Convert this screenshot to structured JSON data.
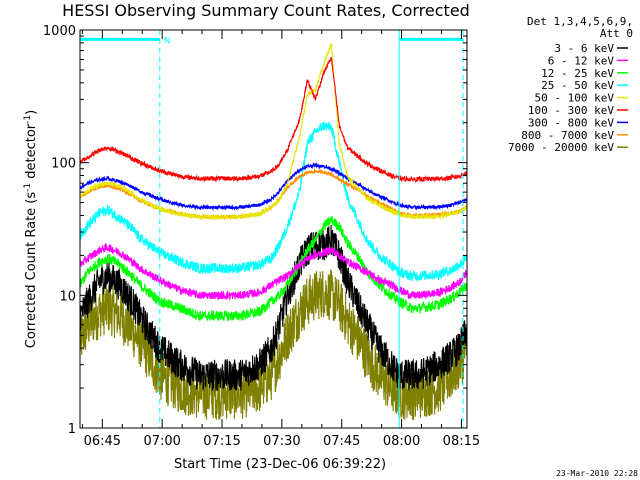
{
  "chart_data": {
    "type": "line",
    "title": "HESSI Observing Summary Count Rates, Corrected",
    "xlabel": "Start Time (23-Dec-06 06:39:22)",
    "ylabel_pre": "Corrected Count Rate (s",
    "ylabel_sup1": "-1",
    "ylabel_mid": " detector",
    "ylabel_sup2": "-1",
    "ylabel_post": ")",
    "y_scale": "log",
    "ylim": [
      1,
      1000
    ],
    "xlim_minutes": [
      0,
      97
    ],
    "y_ticks": [
      {
        "value": 1,
        "label": "1"
      },
      {
        "value": 10,
        "label": "10"
      },
      {
        "value": 100,
        "label": "100"
      },
      {
        "value": 1000,
        "label": "1000"
      }
    ],
    "x_ticks": [
      {
        "minute": 5.6,
        "label": "06:45"
      },
      {
        "minute": 20.6,
        "label": "07:00"
      },
      {
        "minute": 35.6,
        "label": "07:15"
      },
      {
        "minute": 50.6,
        "label": "07:30"
      },
      {
        "minute": 65.6,
        "label": "07:45"
      },
      {
        "minute": 80.6,
        "label": "08:00"
      },
      {
        "minute": 95.6,
        "label": "08:15"
      }
    ],
    "legend": {
      "header1": "Det 1,3,4,5,6,9,",
      "header2": "Att 0",
      "placement": "right"
    },
    "series": [
      {
        "name": "3 - 6 keV",
        "color": "#000000",
        "noise": 0.28,
        "x": [
          0,
          2,
          5,
          7,
          10,
          13,
          15,
          20,
          25,
          30,
          40,
          45,
          48,
          50,
          52,
          55,
          57,
          59,
          61,
          63,
          65,
          67,
          70,
          72,
          75,
          78,
          80,
          83,
          85,
          90,
          93,
          95,
          97
        ],
        "values": [
          7,
          9,
          13,
          14,
          12,
          9,
          7,
          4,
          3,
          2.5,
          2.5,
          3,
          4,
          6,
          10,
          17,
          22,
          24,
          24,
          26,
          20,
          13,
          8,
          6,
          4,
          3,
          2.5,
          2.5,
          2.5,
          3,
          3.5,
          4,
          5.5
        ]
      },
      {
        "name": "6 - 12 keV",
        "color": "#ff00ff",
        "noise": 0.07,
        "x": [
          0,
          2,
          5,
          7,
          10,
          13,
          15,
          20,
          25,
          30,
          40,
          45,
          48,
          50,
          52,
          55,
          57,
          59,
          61,
          63,
          65,
          67,
          70,
          72,
          75,
          78,
          80,
          83,
          85,
          90,
          93,
          95,
          97
        ],
        "values": [
          17,
          19,
          22,
          23,
          21,
          18,
          16,
          13,
          11,
          10,
          10,
          10.5,
          12,
          13,
          14,
          17,
          19,
          20,
          21,
          22,
          20,
          18,
          16,
          15,
          13,
          12,
          11,
          10,
          10,
          10.5,
          11.5,
          12.5,
          15
        ]
      },
      {
        "name": "12 - 25 keV",
        "color": "#00ff00",
        "noise": 0.09,
        "x": [
          0,
          2,
          5,
          7,
          10,
          13,
          15,
          20,
          25,
          30,
          40,
          45,
          48,
          50,
          52,
          55,
          57,
          59,
          61,
          63,
          65,
          67,
          70,
          72,
          75,
          78,
          80,
          83,
          85,
          90,
          93,
          95,
          97
        ],
        "values": [
          12,
          15,
          18,
          19,
          17,
          14,
          12,
          9,
          8,
          7,
          7,
          7.5,
          9,
          10,
          12,
          17,
          22,
          26,
          33,
          37,
          33,
          25,
          19,
          15,
          12,
          10,
          9,
          8,
          8,
          8.5,
          9.5,
          10.5,
          12
        ]
      },
      {
        "name": "25 - 50 keV",
        "color": "#00ffff",
        "noise": 0.09,
        "x": [
          0,
          2,
          5,
          7,
          10,
          13,
          15,
          20,
          25,
          30,
          40,
          45,
          48,
          50,
          52,
          55,
          57,
          59,
          61,
          63,
          65,
          67,
          70,
          72,
          75,
          78,
          80,
          83,
          85,
          90,
          93,
          95,
          97
        ],
        "values": [
          28,
          34,
          42,
          44,
          38,
          32,
          27,
          21,
          18,
          16,
          16,
          17,
          19,
          24,
          33,
          60,
          140,
          170,
          190,
          185,
          100,
          55,
          35,
          26,
          20,
          17,
          15,
          14,
          14,
          14.5,
          15.5,
          17,
          19
        ]
      },
      {
        "name": "50 - 100 keV",
        "color": "#e6e600",
        "noise": 0.04,
        "x": [
          0,
          2,
          5,
          7,
          10,
          13,
          15,
          20,
          25,
          30,
          40,
          45,
          48,
          50,
          52,
          55,
          57,
          59,
          61,
          63,
          65,
          67,
          70,
          72,
          75,
          78,
          80,
          83,
          85,
          90,
          93,
          95,
          97
        ],
        "values": [
          55,
          62,
          68,
          70,
          66,
          59,
          53,
          45,
          41,
          39,
          39,
          41,
          46,
          53,
          70,
          155,
          330,
          350,
          550,
          780,
          140,
          80,
          62,
          54,
          48,
          43,
          41,
          39,
          39,
          39.5,
          41,
          43,
          46
        ]
      },
      {
        "name": "100 - 300 keV",
        "color": "#ff0000",
        "noise": 0.04,
        "x": [
          0,
          2,
          5,
          7,
          10,
          13,
          15,
          20,
          25,
          30,
          40,
          45,
          48,
          50,
          52,
          55,
          57,
          59,
          61,
          63,
          65,
          67,
          70,
          72,
          75,
          78,
          80,
          83,
          85,
          90,
          93,
          95,
          97
        ],
        "values": [
          100,
          110,
          125,
          130,
          120,
          108,
          100,
          87,
          79,
          76,
          76,
          79,
          86,
          97,
          125,
          210,
          420,
          300,
          470,
          620,
          190,
          130,
          110,
          98,
          88,
          80,
          76,
          75,
          75,
          75.5,
          77,
          79,
          84
        ]
      },
      {
        "name": "300 - 800 keV",
        "color": "#0000ff",
        "noise": 0.03,
        "x": [
          0,
          2,
          5,
          7,
          10,
          13,
          15,
          20,
          25,
          30,
          40,
          45,
          48,
          50,
          52,
          55,
          57,
          59,
          61,
          63,
          65,
          67,
          70,
          72,
          75,
          78,
          80,
          83,
          85,
          90,
          93,
          95,
          97
        ],
        "values": [
          65,
          70,
          75,
          76,
          72,
          66,
          61,
          53,
          48,
          46,
          46,
          48,
          53,
          61,
          73,
          88,
          94,
          96,
          94,
          90,
          83,
          76,
          68,
          62,
          56,
          51,
          48,
          46,
          46,
          46.5,
          48,
          50,
          53
        ]
      },
      {
        "name": "800 - 7000 keV",
        "color": "#ff8c00",
        "noise": 0.03,
        "x": [
          0,
          2,
          5,
          7,
          10,
          13,
          15,
          20,
          25,
          30,
          40,
          45,
          48,
          50,
          52,
          55,
          57,
          59,
          61,
          63,
          65,
          67,
          70,
          72,
          75,
          78,
          80,
          83,
          85,
          90,
          93,
          95,
          97
        ],
        "values": [
          55,
          60,
          66,
          67,
          63,
          57,
          52,
          45,
          41,
          39,
          39,
          41,
          46,
          53,
          65,
          78,
          84,
          86,
          85,
          82,
          75,
          69,
          62,
          56,
          50,
          45,
          42,
          40,
          40,
          40.5,
          41.5,
          43,
          46
        ]
      },
      {
        "name": "7000 - 20000 keV",
        "color": "#808000",
        "noise": 0.45,
        "x": [
          0,
          2,
          5,
          7,
          10,
          13,
          15,
          20,
          25,
          30,
          40,
          45,
          48,
          50,
          52,
          55,
          57,
          59,
          61,
          63,
          65,
          67,
          70,
          72,
          75,
          78,
          80,
          83,
          85,
          90,
          93,
          95,
          97
        ],
        "values": [
          4.5,
          6,
          7.5,
          8,
          7,
          5.5,
          4.5,
          2.5,
          2,
          1.8,
          1.8,
          2,
          2.5,
          3.5,
          5,
          7.5,
          9,
          10,
          10.5,
          10,
          8.5,
          6.5,
          4.5,
          3.5,
          2.5,
          2,
          1.8,
          1.8,
          1.8,
          2,
          2.5,
          3,
          4
        ]
      }
    ],
    "annotations": [
      {
        "type": "dashed-vline",
        "minute": 20,
        "color": "#00ffff"
      },
      {
        "type": "solid-vline",
        "minute": 80,
        "color": "#00ffff"
      },
      {
        "type": "dashed-vline",
        "minute": 96,
        "color": "#00ffff"
      },
      {
        "type": "hbar",
        "from": 0,
        "to": 20,
        "level": 850,
        "color": "#00ffff",
        "label": "N"
      },
      {
        "type": "hbar",
        "from": 80,
        "to": 96,
        "level": 850,
        "color": "#00ffff",
        "label": ""
      }
    ],
    "grid": false
  },
  "timestamp": "23-Mar-2010 22:28"
}
